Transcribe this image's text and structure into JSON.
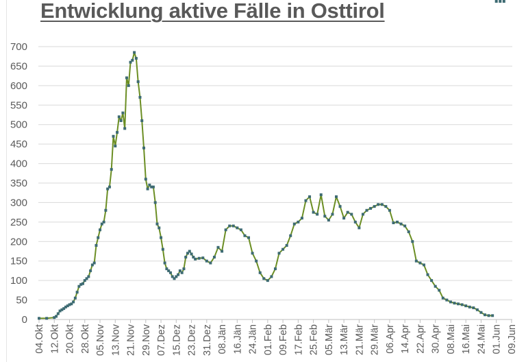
{
  "title": "Entwicklung aktive Fälle in Osttirol",
  "colors": {
    "line": "#6b8e23",
    "marker": "#3e6b73",
    "grid": "#d9d9d9",
    "axis": "#bfbfbf",
    "text": "#595959"
  },
  "chart_data": {
    "type": "line",
    "title": "Entwicklung aktive Fälle in Osttirol",
    "xlabel": "",
    "ylabel": "",
    "ylim": [
      0,
      700
    ],
    "yticks": [
      0,
      50,
      100,
      150,
      200,
      250,
      300,
      350,
      400,
      450,
      500,
      550,
      600,
      650,
      700
    ],
    "grid": true,
    "legend": false,
    "x_tick_labels": [
      "04.Okt",
      "12.Okt",
      "20.Okt",
      "28.Okt",
      "05.Nov",
      "13.Nov",
      "21.Nov",
      "29.Nov",
      "07.Dez",
      "15.Dez",
      "23.Dez",
      "31.Dez",
      "08.Jän",
      "16.Jän",
      "24.Jän",
      "01.Feb",
      "09.Feb",
      "17.Feb",
      "25.Feb",
      "05.Mär",
      "13.Mär",
      "21.Mär",
      "29.Mär",
      "06.Apr",
      "14.Apr",
      "22.Apr",
      "30.Apr",
      "08.Mai",
      "16.Mai",
      "24.Mai",
      "01.Jun",
      "09.Jun"
    ],
    "x_tick_interval_days": 8,
    "series": [
      {
        "name": "Aktive Fälle",
        "day_offset_from_04Okt": [
          0,
          4,
          8,
          9,
          10,
          11,
          12,
          13,
          14,
          15,
          16,
          17,
          18,
          19,
          20,
          21,
          22,
          23,
          24,
          25,
          26,
          27,
          28,
          29,
          30,
          31,
          32,
          33,
          34,
          35,
          36,
          37,
          38,
          39,
          40,
          41,
          42,
          43,
          44,
          45,
          46,
          47,
          48,
          49,
          50,
          51,
          52,
          53,
          54,
          55,
          56,
          57,
          58,
          59,
          60,
          61,
          62,
          63,
          64,
          65,
          66,
          67,
          68,
          69,
          70,
          71,
          72,
          73,
          74,
          75,
          76,
          77,
          78,
          79,
          80,
          81,
          82,
          84,
          86,
          88,
          90,
          92,
          94,
          96,
          98,
          100,
          102,
          104,
          106,
          108,
          110,
          112,
          114,
          116,
          118,
          120,
          122,
          124,
          126,
          128,
          130,
          132,
          134,
          136,
          138,
          140,
          142,
          144,
          146,
          148,
          150,
          152,
          154,
          156,
          158,
          160,
          162,
          164,
          166,
          168,
          170,
          172,
          174,
          176,
          178,
          180,
          182,
          184,
          186,
          188,
          190,
          192,
          194,
          196,
          198,
          200,
          202,
          204,
          206,
          208,
          210,
          212,
          214,
          216,
          218,
          220,
          222,
          224,
          226,
          228,
          230,
          232,
          234,
          236,
          238,
          240,
          242,
          244
        ],
        "values": [
          3,
          3,
          5,
          8,
          15,
          22,
          25,
          28,
          32,
          35,
          38,
          40,
          45,
          55,
          70,
          85,
          90,
          92,
          100,
          105,
          110,
          125,
          140,
          145,
          190,
          210,
          230,
          245,
          250,
          280,
          335,
          340,
          385,
          470,
          445,
          480,
          520,
          510,
          530,
          490,
          620,
          600,
          660,
          665,
          685,
          670,
          610,
          570,
          510,
          440,
          360,
          335,
          345,
          340,
          340,
          300,
          245,
          235,
          210,
          180,
          145,
          130,
          125,
          120,
          110,
          105,
          110,
          115,
          125,
          120,
          130,
          160,
          170,
          175,
          168,
          160,
          155,
          157,
          158,
          150,
          145,
          160,
          185,
          175,
          230,
          240,
          240,
          235,
          230,
          215,
          210,
          170,
          150,
          120,
          105,
          100,
          110,
          130,
          170,
          180,
          190,
          215,
          245,
          250,
          260,
          305,
          315,
          275,
          270,
          320,
          265,
          255,
          270,
          315,
          290,
          260,
          275,
          270,
          250,
          235,
          270,
          280,
          285,
          290,
          295,
          295,
          290,
          280,
          248,
          250,
          245,
          240,
          225,
          200,
          150,
          145,
          140,
          115,
          100,
          85,
          75,
          55,
          50,
          45,
          42,
          40,
          38,
          35,
          32,
          30,
          25,
          18,
          12,
          10,
          10
        ]
      }
    ]
  }
}
